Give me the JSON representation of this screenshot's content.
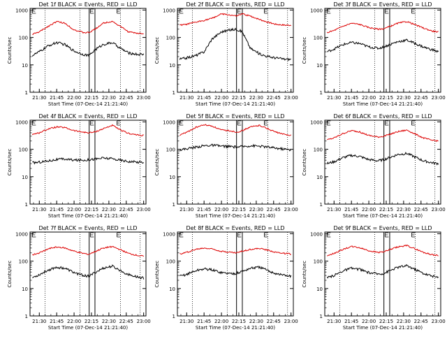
{
  "figure": {
    "x_tick_labels": [
      "21:30",
      "21:45",
      "22:00",
      "22:15",
      "22:30",
      "22:45",
      "23:00"
    ],
    "y_tick_labels": [
      "1",
      "10",
      "100",
      "1000"
    ],
    "colors": {
      "events": "#000000",
      "lld": "#dd0000",
      "axes": "#000000"
    }
  },
  "chart_data": [
    {
      "type": "line",
      "title": "Det 1f BLACK = Events, RED = LLD",
      "xlabel": "Start Time (07-Dec-14 21:21:40)",
      "ylabel": "Counts/sec",
      "ylim": [
        1,
        1000
      ],
      "yscale": "log",
      "xlim": [
        "21:22",
        "23:02"
      ],
      "x": [
        "21:24",
        "21:30",
        "21:38",
        "21:45",
        "21:52",
        "22:00",
        "22:08",
        "22:13",
        "22:18",
        "22:25",
        "22:33",
        "22:40",
        "22:47",
        "22:55",
        "23:00"
      ],
      "series": [
        {
          "name": "LLD",
          "values": [
            130,
            160,
            260,
            380,
            330,
            190,
            150,
            150,
            200,
            330,
            390,
            250,
            160,
            140,
            140
          ]
        },
        {
          "name": "Events",
          "values": [
            22,
            30,
            50,
            65,
            55,
            32,
            24,
            22,
            35,
            55,
            65,
            40,
            27,
            24,
            24
          ]
        }
      ]
    },
    {
      "type": "line",
      "title": "Det 2f BLACK = Events, RED = LLD",
      "xlabel": "Start Time (07-Dec-14 21:21:40)",
      "ylabel": "Counts/sec",
      "ylim": [
        1,
        1000
      ],
      "yscale": "log",
      "xlim": [
        "21:22",
        "23:02"
      ],
      "x": [
        "21:24",
        "21:30",
        "21:38",
        "21:45",
        "21:52",
        "22:00",
        "22:08",
        "22:13",
        "22:18",
        "22:25",
        "22:33",
        "22:40",
        "22:47",
        "22:55",
        "23:00"
      ],
      "series": [
        {
          "name": "LLD",
          "values": [
            280,
            300,
            360,
            420,
            500,
            720,
            650,
            600,
            720,
            600,
            450,
            360,
            300,
            280,
            280
          ]
        },
        {
          "name": "Events",
          "values": [
            16,
            18,
            22,
            30,
            90,
            160,
            190,
            200,
            160,
            40,
            25,
            20,
            18,
            16,
            16
          ]
        }
      ]
    },
    {
      "type": "line",
      "title": "Det 3f BLACK = Events, RED = LLD",
      "xlabel": "Start Time (07-Dec-14 21:21:40)",
      "ylabel": "Counts/sec",
      "ylim": [
        1,
        1000
      ],
      "yscale": "log",
      "xlim": [
        "21:22",
        "23:02"
      ],
      "x": [
        "21:24",
        "21:30",
        "21:38",
        "21:45",
        "21:52",
        "22:00",
        "22:08",
        "22:13",
        "22:18",
        "22:25",
        "22:33",
        "22:40",
        "22:47",
        "22:55",
        "23:00"
      ],
      "series": [
        {
          "name": "LLD",
          "values": [
            150,
            180,
            260,
            330,
            300,
            230,
            200,
            210,
            250,
            330,
            380,
            290,
            220,
            170,
            160
          ]
        },
        {
          "name": "Events",
          "values": [
            30,
            38,
            55,
            65,
            60,
            45,
            40,
            45,
            55,
            70,
            80,
            60,
            45,
            35,
            30
          ]
        }
      ]
    },
    {
      "type": "line",
      "title": "Det 4f BLACK = Events, RED = LLD",
      "xlabel": "Start Time (07-Dec-14 21:21:40)",
      "ylabel": "Counts/sec",
      "ylim": [
        1,
        1000
      ],
      "yscale": "log",
      "xlim": [
        "21:22",
        "23:02"
      ],
      "x": [
        "21:24",
        "21:30",
        "21:38",
        "21:45",
        "21:52",
        "22:00",
        "22:08",
        "22:13",
        "22:18",
        "22:25",
        "22:33",
        "22:40",
        "22:47",
        "22:55",
        "23:00"
      ],
      "series": [
        {
          "name": "LLD",
          "values": [
            350,
            400,
            560,
            650,
            620,
            480,
            420,
            400,
            430,
            560,
            750,
            500,
            380,
            330,
            320
          ]
        },
        {
          "name": "Events",
          "values": [
            32,
            34,
            38,
            42,
            44,
            40,
            40,
            42,
            44,
            48,
            45,
            40,
            36,
            34,
            34
          ]
        }
      ]
    },
    {
      "type": "line",
      "title": "Det 5f BLACK = Events, RED = LLD",
      "xlabel": "Start Time (07-Dec-14 21:21:40)",
      "ylabel": "Counts/sec",
      "ylim": [
        1,
        1000
      ],
      "yscale": "log",
      "xlim": [
        "21:22",
        "23:02"
      ],
      "x": [
        "21:24",
        "21:30",
        "21:38",
        "21:45",
        "21:52",
        "22:00",
        "22:08",
        "22:13",
        "22:18",
        "22:25",
        "22:33",
        "22:40",
        "22:47",
        "22:55",
        "23:00"
      ],
      "series": [
        {
          "name": "LLD",
          "values": [
            330,
            420,
            630,
            780,
            700,
            500,
            470,
            420,
            480,
            650,
            750,
            560,
            420,
            340,
            330
          ]
        },
        {
          "name": "Events",
          "values": [
            95,
            105,
            120,
            135,
            140,
            130,
            125,
            120,
            125,
            135,
            130,
            120,
            110,
            100,
            95
          ]
        }
      ]
    },
    {
      "type": "line",
      "title": "Det 6f BLACK = Events, RED = LLD",
      "xlabel": "Start Time (07-Dec-14 21:21:40)",
      "ylabel": "Counts/sec",
      "ylim": [
        1,
        1000
      ],
      "yscale": "log",
      "xlim": [
        "21:22",
        "23:02"
      ],
      "x": [
        "21:24",
        "21:30",
        "21:38",
        "21:45",
        "21:52",
        "22:00",
        "22:08",
        "22:13",
        "22:18",
        "22:25",
        "22:33",
        "22:40",
        "22:47",
        "22:55",
        "23:00"
      ],
      "series": [
        {
          "name": "LLD",
          "values": [
            220,
            260,
            380,
            480,
            430,
            320,
            280,
            300,
            350,
            440,
            500,
            360,
            260,
            210,
            200
          ]
        },
        {
          "name": "Events",
          "values": [
            30,
            35,
            50,
            60,
            55,
            42,
            38,
            42,
            50,
            65,
            70,
            52,
            38,
            32,
            30
          ]
        }
      ]
    },
    {
      "type": "line",
      "title": "Det 7f BLACK = Events, RED = LLD",
      "xlabel": "Start Time (07-Dec-14 21:21:40)",
      "ylabel": "Counts/sec",
      "ylim": [
        1,
        1000
      ],
      "yscale": "log",
      "xlim": [
        "21:22",
        "23:02"
      ],
      "x": [
        "21:24",
        "21:30",
        "21:38",
        "21:45",
        "21:52",
        "22:00",
        "22:08",
        "22:13",
        "22:18",
        "22:25",
        "22:33",
        "22:40",
        "22:47",
        "22:55",
        "23:00"
      ],
      "series": [
        {
          "name": "LLD",
          "values": [
            170,
            200,
            280,
            330,
            300,
            230,
            190,
            180,
            220,
            300,
            340,
            260,
            190,
            160,
            150
          ]
        },
        {
          "name": "Events",
          "values": [
            25,
            32,
            48,
            60,
            55,
            38,
            30,
            28,
            38,
            55,
            65,
            45,
            32,
            26,
            24
          ]
        }
      ]
    },
    {
      "type": "line",
      "title": "Det 8f BLACK = Events, RED = LLD",
      "xlabel": "Start Time (07-Dec-14 21:21:40)",
      "ylabel": "Counts/sec",
      "ylim": [
        1,
        1000
      ],
      "yscale": "log",
      "xlim": [
        "21:22",
        "23:02"
      ],
      "x": [
        "21:24",
        "21:30",
        "21:38",
        "21:45",
        "21:52",
        "22:00",
        "22:08",
        "22:13",
        "22:18",
        "22:25",
        "22:33",
        "22:40",
        "22:47",
        "22:55",
        "23:00"
      ],
      "series": [
        {
          "name": "LLD",
          "values": [
            180,
            210,
            270,
            300,
            280,
            230,
            210,
            200,
            230,
            270,
            290,
            250,
            210,
            190,
            180
          ]
        },
        {
          "name": "Events",
          "values": [
            28,
            33,
            45,
            52,
            48,
            38,
            35,
            36,
            42,
            55,
            60,
            45,
            35,
            30,
            28
          ]
        }
      ]
    },
    {
      "type": "line",
      "title": "Det 9f BLACK = Events, RED = LLD",
      "xlabel": "Start Time (07-Dec-14 21:21:40)",
      "ylabel": "Counts/sec",
      "ylim": [
        1,
        1000
      ],
      "yscale": "log",
      "xlim": [
        "21:22",
        "23:02"
      ],
      "x": [
        "21:24",
        "21:30",
        "21:38",
        "21:45",
        "21:52",
        "22:00",
        "22:08",
        "22:13",
        "22:18",
        "22:25",
        "22:33",
        "22:40",
        "22:47",
        "22:55",
        "23:00"
      ],
      "series": [
        {
          "name": "LLD",
          "values": [
            160,
            190,
            270,
            340,
            310,
            240,
            210,
            220,
            260,
            330,
            370,
            280,
            210,
            170,
            160
          ]
        },
        {
          "name": "Events",
          "values": [
            24,
            30,
            45,
            55,
            50,
            38,
            34,
            36,
            45,
            60,
            68,
            50,
            36,
            28,
            25
          ]
        }
      ]
    }
  ]
}
